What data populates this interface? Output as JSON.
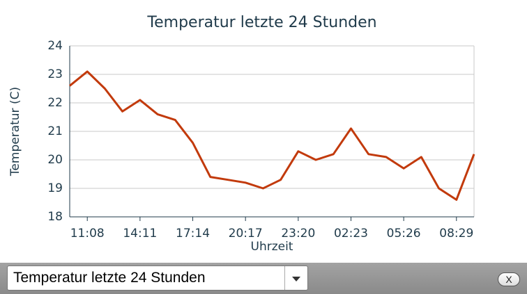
{
  "chart_data": {
    "type": "line",
    "title": "Temperatur letzte 24 Stunden",
    "x_label": "Uhrzeit",
    "y_label": "Temperatur (C)",
    "categories": [
      null,
      "11:08",
      null,
      null,
      "14:11",
      null,
      null,
      "17:14",
      null,
      null,
      "20:17",
      null,
      null,
      "23:20",
      null,
      null,
      "02:23",
      null,
      null,
      "05:26",
      null,
      null,
      "08:29",
      null
    ],
    "series": [
      {
        "name": "Temperatur",
        "color": "#c23a0c",
        "values": [
          22.6,
          23.1,
          22.5,
          21.7,
          22.1,
          21.6,
          21.4,
          20.6,
          19.4,
          19.3,
          19.2,
          19.0,
          19.3,
          20.3,
          20.0,
          20.2,
          21.1,
          20.2,
          20.1,
          19.7,
          20.1,
          19.0,
          18.6,
          20.2
        ]
      }
    ],
    "ylim": [
      18,
      24
    ],
    "yticks": [
      18,
      19,
      20,
      21,
      22,
      23,
      24
    ],
    "grid": true
  },
  "ui": {
    "select_value": "Temperatur letzte 24 Stunden",
    "close_label": "X"
  }
}
